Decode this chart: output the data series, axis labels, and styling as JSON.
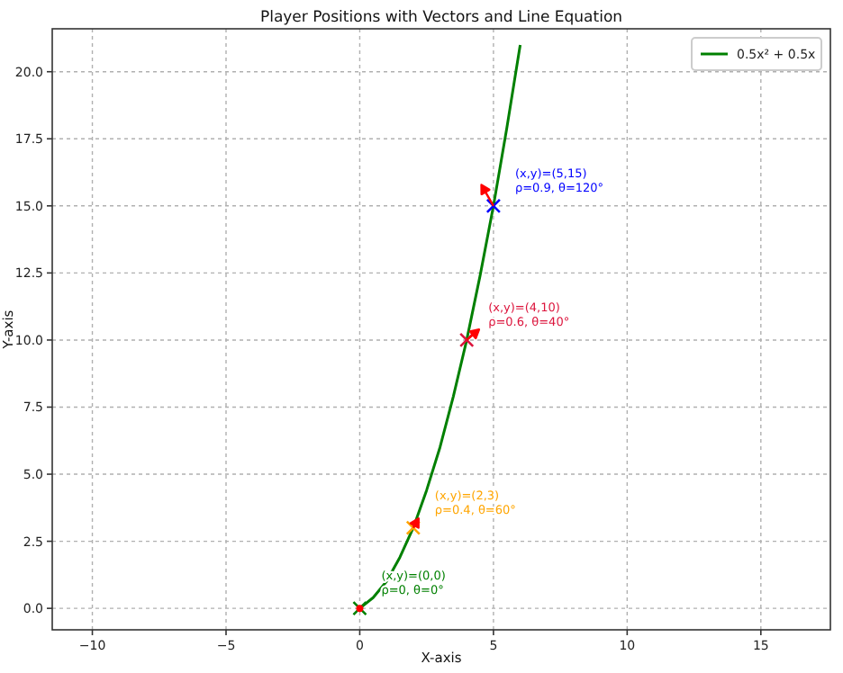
{
  "chart_data": {
    "type": "line",
    "title": "Player Positions with Vectors and Line Equation",
    "xlabel": "X-axis",
    "ylabel": "Y-axis",
    "xlim": [
      -11.5,
      17.6
    ],
    "ylim": [
      -0.8,
      21.6
    ],
    "xticks": [
      -10,
      -5,
      0,
      5,
      10,
      15
    ],
    "yticks": [
      {
        "value": 0,
        "label": "0.0"
      },
      {
        "value": 2.5,
        "label": "2.5"
      },
      {
        "value": 5,
        "label": "5.0"
      },
      {
        "value": 7.5,
        "label": "7.5"
      },
      {
        "value": 10,
        "label": "10.0"
      },
      {
        "value": 12.5,
        "label": "12.5"
      },
      {
        "value": 15,
        "label": "15.0"
      },
      {
        "value": 17.5,
        "label": "17.5"
      },
      {
        "value": 20,
        "label": "20.0"
      }
    ],
    "grid": true,
    "legend": "top right",
    "line_style": "solid",
    "series": [
      {
        "name": "0.5x² + 0.5x",
        "color": "#008000",
        "x": [
          0,
          0.5,
          1,
          1.5,
          2,
          2.5,
          3,
          3.5,
          4,
          4.5,
          5,
          5.5,
          6
        ],
        "values": [
          0,
          0.4,
          1,
          1.9,
          3,
          4.4,
          6,
          7.9,
          10,
          12.4,
          15,
          17.9,
          21
        ]
      },
      {
        "type": "scatter",
        "marker": "cross",
        "color": "#008000",
        "x": [
          0
        ],
        "values": [
          0
        ]
      },
      {
        "type": "scatter",
        "marker": "cross",
        "color": "#ffa500",
        "x": [
          2
        ],
        "values": [
          3
        ]
      },
      {
        "type": "scatter",
        "marker": "cross",
        "color": "#dc143c",
        "x": [
          4
        ],
        "values": [
          10
        ]
      },
      {
        "type": "scatter",
        "marker": "cross",
        "color": "#0000ff",
        "x": [
          5
        ],
        "values": [
          15
        ]
      },
      {
        "type": "scatter",
        "marker": "circle",
        "color": "#ff0000",
        "x": [
          0
        ],
        "values": [
          0
        ]
      },
      {
        "color": "#ff0000",
        "x": [
          2,
          2.2
        ],
        "values": [
          3,
          3.35
        ]
      },
      {
        "color": "#ff0000",
        "x": [
          4,
          4.46
        ],
        "values": [
          10,
          10.39
        ]
      },
      {
        "color": "#ff0000",
        "x": [
          5,
          4.55
        ],
        "values": [
          15,
          15.78
        ]
      }
    ],
    "annotations": [
      {
        "text": "(x,y)=(0,0)\nρ=0, θ=0°",
        "x": 0,
        "y": 0
      },
      {
        "text": "(x,y)=(2,3)\nρ=0.4, θ=60°",
        "x": 2,
        "y": 3
      },
      {
        "text": "(x,y)=(4,10)\nρ=0.6, θ=40°",
        "x": 4,
        "y": 10
      },
      {
        "text": "(x,y)=(5,15)\nρ=0.9, θ=120°",
        "x": 5,
        "y": 15
      }
    ]
  }
}
